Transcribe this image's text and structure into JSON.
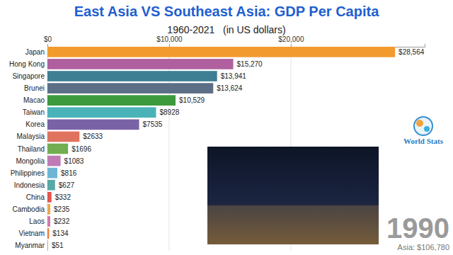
{
  "chart_data": {
    "type": "bar",
    "orientation": "horizontal",
    "title": "East Asia VS Southeast Asia: GDP Per Capita",
    "subtitle": "1960-2021   (in US dollars)",
    "categories": [
      "Japan",
      "Hong Kong",
      "Singapore",
      "Brunei",
      "Macao",
      "Taiwan",
      "Korea",
      "Malaysia",
      "Thailand",
      "Mongolia",
      "Philippines",
      "Indonesia",
      "China",
      "Cambodia",
      "Laos",
      "Vietnam",
      "Myanmar"
    ],
    "values": [
      28564,
      15270,
      13941,
      13624,
      10529,
      8928,
      7535,
      2633,
      1696,
      1083,
      816,
      627,
      332,
      235,
      232,
      134,
      51
    ],
    "value_labels": [
      "$28,564",
      "$15,270",
      "$13,941",
      "$13,624",
      "$10,529",
      "$8928",
      "$7535",
      "$2633",
      "$1696",
      "$1083",
      "$816",
      "$627",
      "$332",
      "$235",
      "$232",
      "$134",
      "$51"
    ],
    "colors": [
      "#f39a2e",
      "#b0609e",
      "#3f7f94",
      "#5d6f86",
      "#3c9a3c",
      "#4bb3b8",
      "#7a62a6",
      "#e0735f",
      "#73ad52",
      "#c07bb5",
      "#6fb6d6",
      "#58a8a6",
      "#e5534b",
      "#eea848",
      "#d27aa8",
      "#ef7a35",
      "#a9c055"
    ],
    "xlim": [
      0,
      31000
    ],
    "xticks": [
      {
        "value": 0,
        "label": "$0"
      },
      {
        "value": 10000,
        "label": "$10,000"
      },
      {
        "value": 20000,
        "label": "$20,000"
      }
    ],
    "grid": true,
    "data_labels": true,
    "annotations": [
      "1990",
      "Asia: $106,780",
      "World Stats"
    ]
  }
}
